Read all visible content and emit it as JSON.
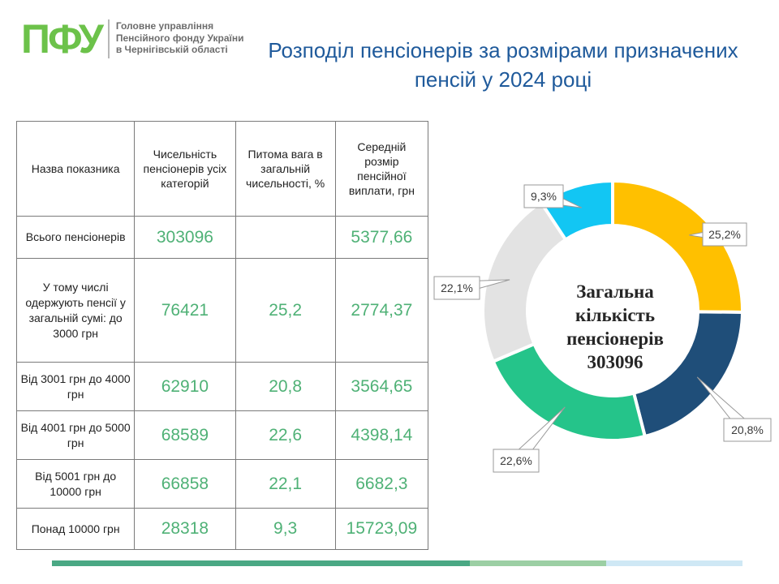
{
  "header": {
    "logo_mark": "ПФУ",
    "logo_lines": [
      "Головне управління",
      "Пенсійного фонду України",
      "в Чернігівській області"
    ],
    "title_lines": [
      "Розподіл пенсіонерів за розмірами призначених",
      "пенсій у 2024 році"
    ]
  },
  "table": {
    "headers": [
      "Назва показника",
      "Чисельність пенсіонерів усіх категорій",
      "Питома вага в загальній чисельності, %",
      "Середній розмір пенсійної виплати, грн"
    ],
    "rows": [
      {
        "label": "Всього пенсіонерів",
        "count": "303096",
        "share": "",
        "avg": "5377,66"
      },
      {
        "label": "У тому числі одержують пенсії у загальній сумі: до 3000 грн",
        "count": "76421",
        "share": "25,2",
        "avg": "2774,37"
      },
      {
        "label": "Від 3001 грн до 4000 грн",
        "count": "62910",
        "share": "20,8",
        "avg": "3564,65"
      },
      {
        "label": "Від 4001 грн до 5000 грн",
        "count": "68589",
        "share": "22,6",
        "avg": "4398,14"
      },
      {
        "label": "Від 5001 грн до 10000 грн",
        "count": "66858",
        "share": "22,1",
        "avg": "6682,3"
      },
      {
        "label": "Понад 10000 грн",
        "count": "28318",
        "share": "9,3",
        "avg": "15723,09"
      }
    ]
  },
  "chart_data": {
    "type": "pie",
    "variant": "donut",
    "center_text": [
      "Загальна",
      "кількість",
      "пенсіонерів",
      "303096"
    ],
    "slices": [
      {
        "category": "до 3000 грн",
        "value": 25.2,
        "label": "25,2%",
        "color": "#ffc000"
      },
      {
        "category": "Від 3001 грн до 4000 грн",
        "value": 20.8,
        "label": "20,8%",
        "color": "#1f4e79"
      },
      {
        "category": "Від 4001 грн до 5000 грн",
        "value": 22.6,
        "label": "22,6%",
        "color": "#25c48a"
      },
      {
        "category": "Від 5001 грн до 10000 грн",
        "value": 22.1,
        "label": "22,1%",
        "color": "#e3e3e3"
      },
      {
        "category": "Понад 10000 грн",
        "value": 9.3,
        "label": "9,3%",
        "color": "#12c6f3"
      }
    ]
  },
  "colors": {
    "title": "#1f5a9b",
    "logo": "#6cc24a",
    "table_numbers": "#4fb176",
    "bottom_bar": [
      "#4aa884",
      "#9ccfa4",
      "#cfe8f5"
    ]
  }
}
